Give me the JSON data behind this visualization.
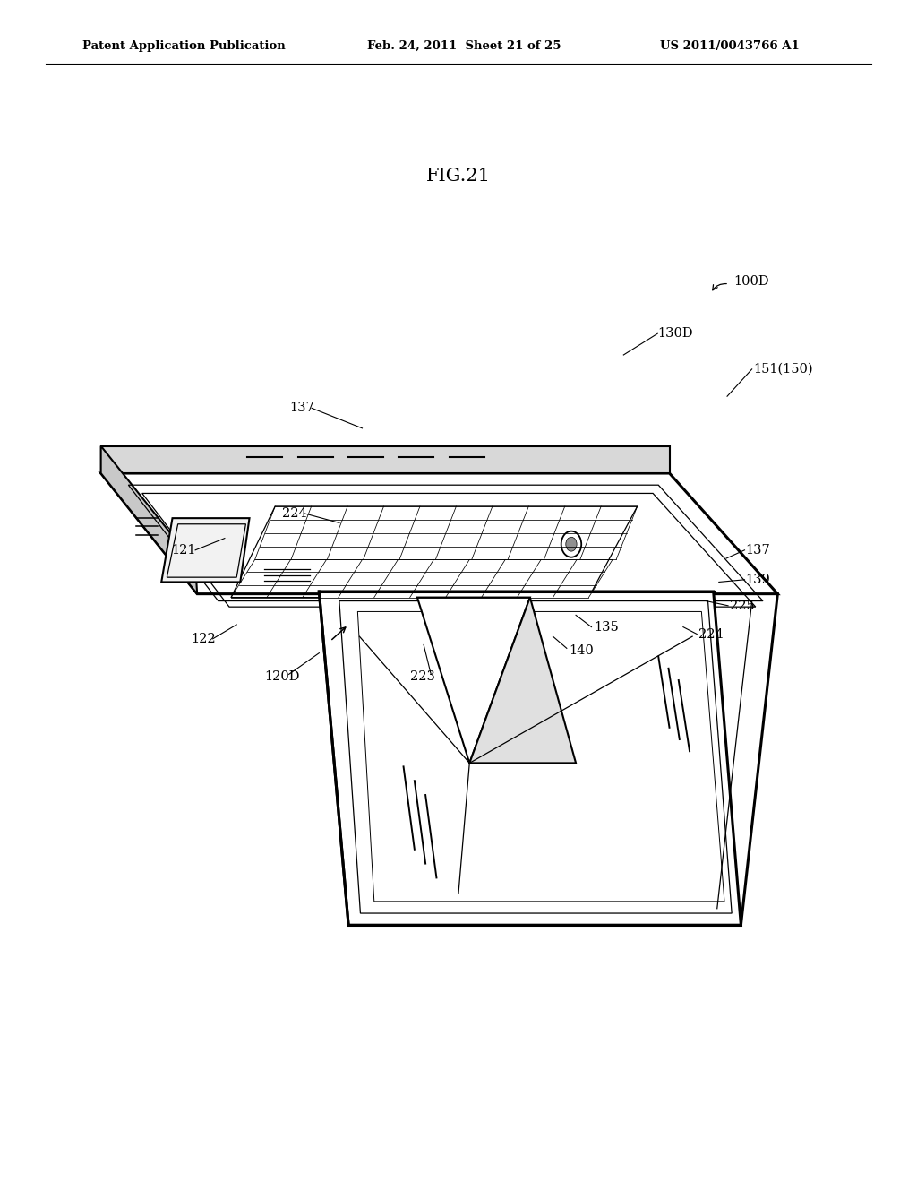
{
  "title": "FIG.21",
  "header_left": "Patent Application Publication",
  "header_mid": "Feb. 24, 2011  Sheet 21 of 25",
  "header_right": "US 2011/0043766 A1",
  "bg_color": "#ffffff",
  "line_color": "#000000",
  "label_fontsize": 10.5,
  "header_fontsize": 9.5,
  "title_fontsize": 15
}
